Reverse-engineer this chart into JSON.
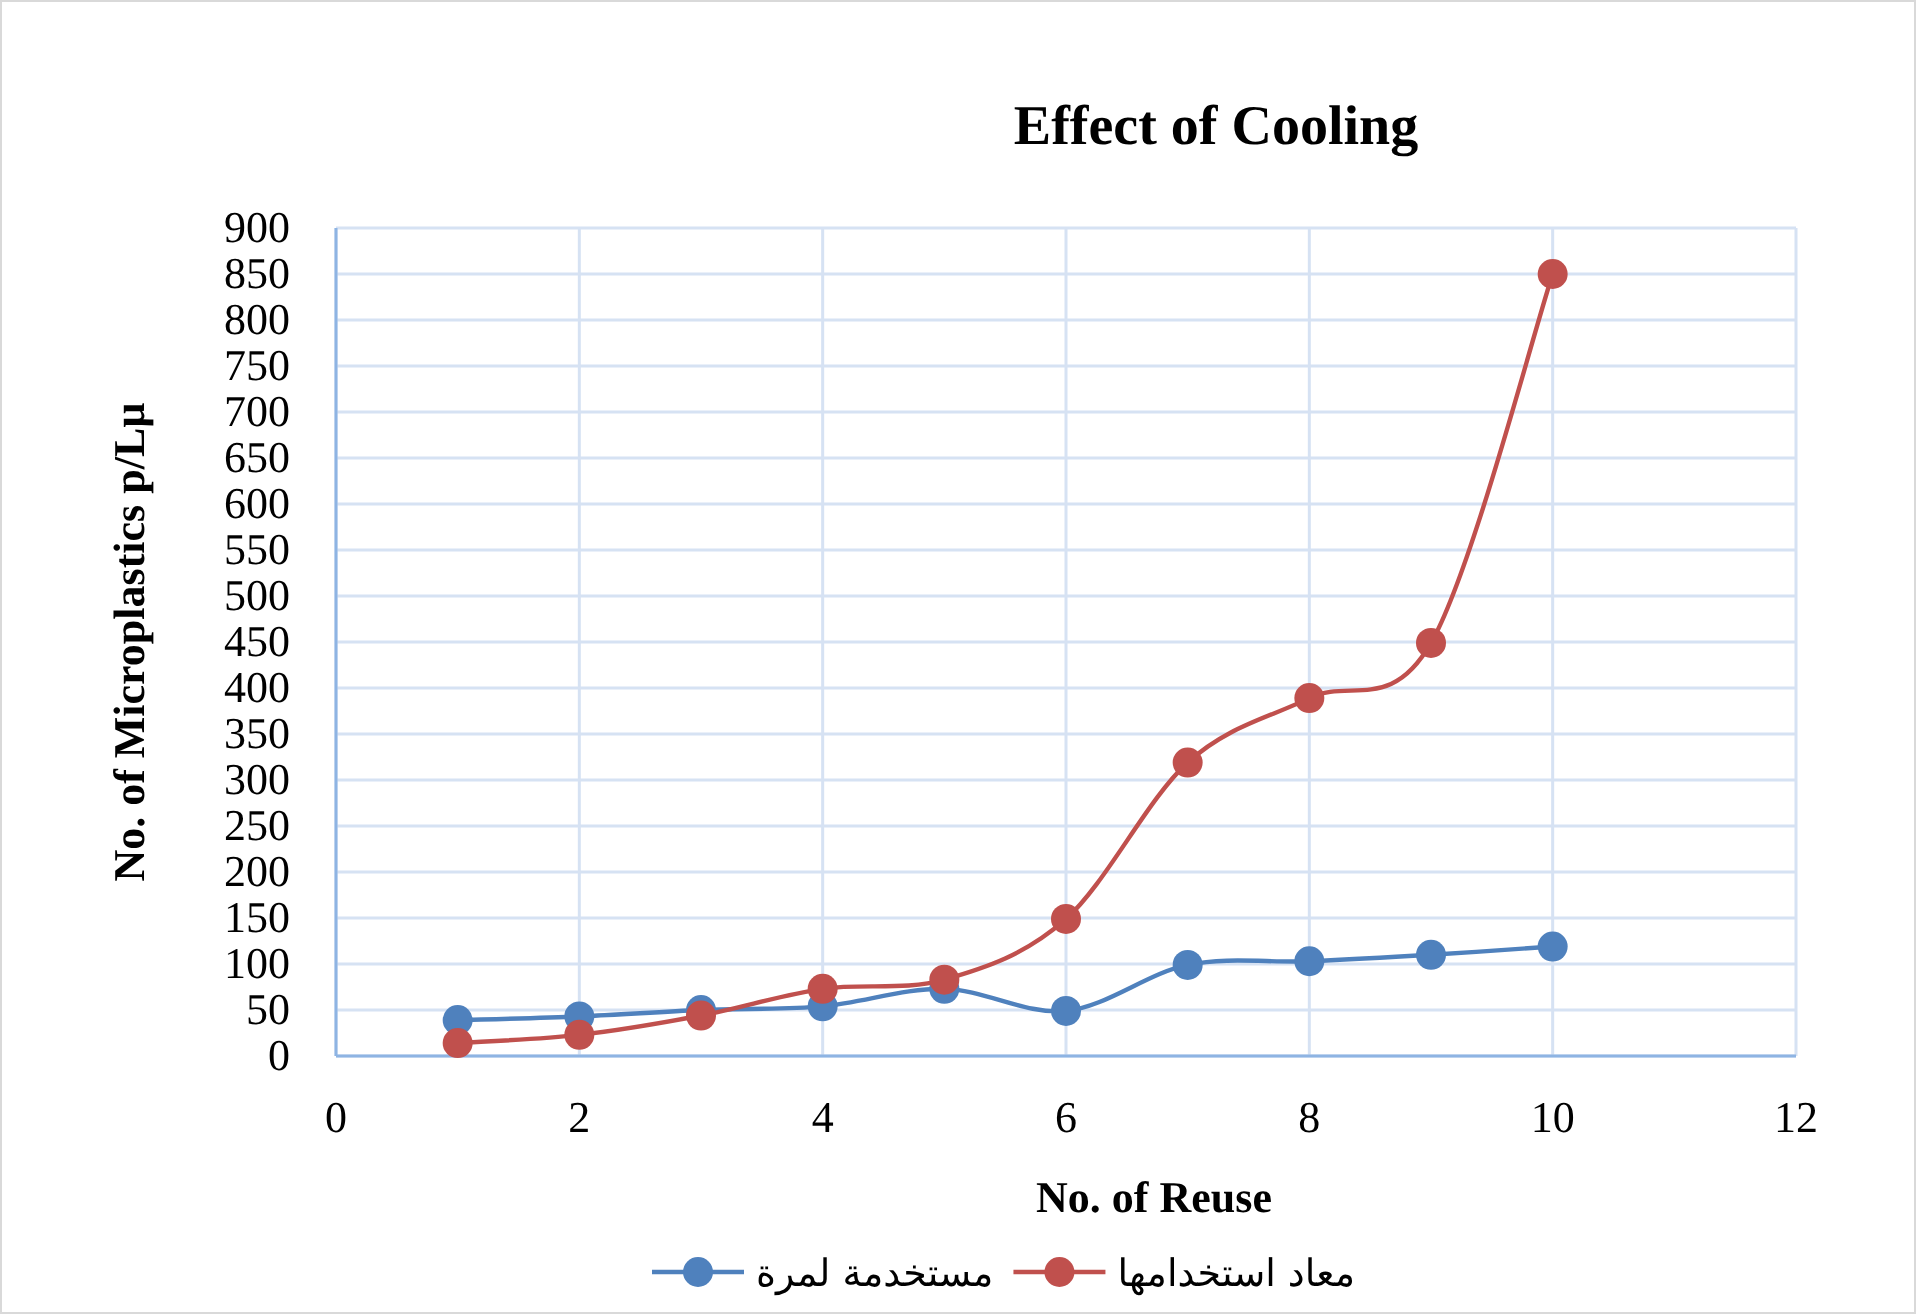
{
  "chart_data": {
    "type": "line",
    "title": "Effect of Cooling",
    "xlabel": "No. of Reuse",
    "ylabel": "No. of Microplastics p/Lµ",
    "x": [
      1,
      2,
      3,
      4,
      5,
      6,
      7,
      8,
      9,
      10
    ],
    "series": [
      {
        "name": "مستخدمة لمرة",
        "color": "#4f81bd",
        "values": [
          39,
          43,
          50,
          54,
          73,
          49,
          99,
          103,
          110,
          119
        ]
      },
      {
        "name": "معاد استخدامها",
        "color": "#c0504d",
        "values": [
          14,
          23,
          44,
          73,
          83,
          149,
          319,
          389,
          449,
          850
        ]
      }
    ],
    "xlim": [
      0,
      12
    ],
    "xticks": [
      0,
      2,
      4,
      6,
      8,
      10,
      12
    ],
    "ylim": [
      0,
      900
    ],
    "yticks": [
      0,
      50,
      100,
      150,
      200,
      250,
      300,
      350,
      400,
      450,
      500,
      550,
      600,
      650,
      700,
      750,
      800,
      850,
      900
    ],
    "grid": true,
    "legend": "bottom",
    "marker": "circle",
    "line_style": "solid"
  }
}
